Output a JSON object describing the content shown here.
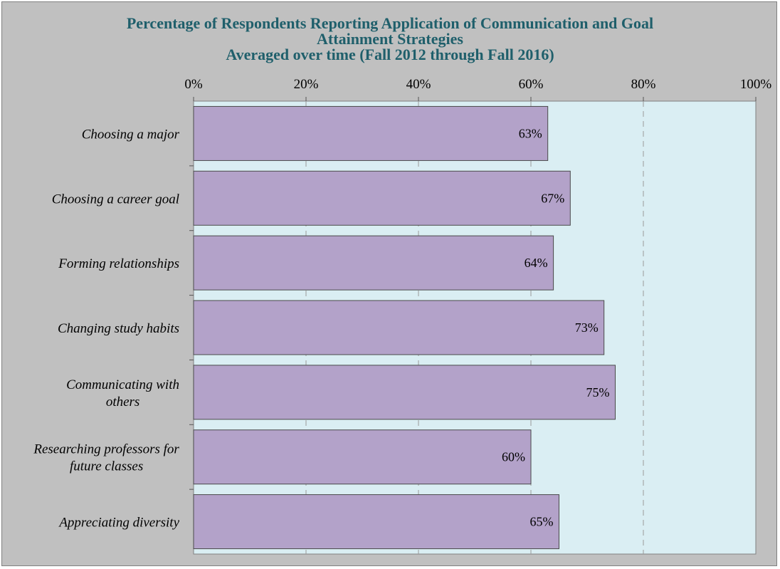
{
  "chart_data": {
    "type": "bar",
    "orientation": "horizontal",
    "title": [
      "Percentage of Respondents Reporting Application of Communication and Goal",
      "Attainment Strategies"
    ],
    "subtitle": "Averaged over time (Fall 2012 through Fall 2016)",
    "categories": [
      [
        "Choosing a major"
      ],
      [
        "Choosing a career goal"
      ],
      [
        "Forming relationships"
      ],
      [
        "Changing study habits"
      ],
      [
        "Communicating with",
        "others"
      ],
      [
        "Researching professors for",
        "future classes"
      ],
      [
        "Appreciating diversity"
      ]
    ],
    "values": [
      63,
      67,
      64,
      73,
      75,
      60,
      65
    ],
    "value_labels": [
      "63%",
      "67%",
      "64%",
      "73%",
      "75%",
      "60%",
      "65%"
    ],
    "xlim": [
      0,
      100
    ],
    "x_ticks": [
      0,
      20,
      40,
      60,
      80,
      100
    ],
    "x_tick_labels": [
      "0%",
      "20%",
      "40%",
      "60%",
      "80%",
      "100%"
    ],
    "x_axis_position": "top",
    "grid": true,
    "colors": {
      "bar_fill": "#b3a2c9",
      "bar_stroke": "#4a4a4a",
      "plot_bg": "#daeef3",
      "outer_bg": "#c0c0c0",
      "title": "#1f5f6b",
      "grid": "#9a9a9a"
    }
  }
}
